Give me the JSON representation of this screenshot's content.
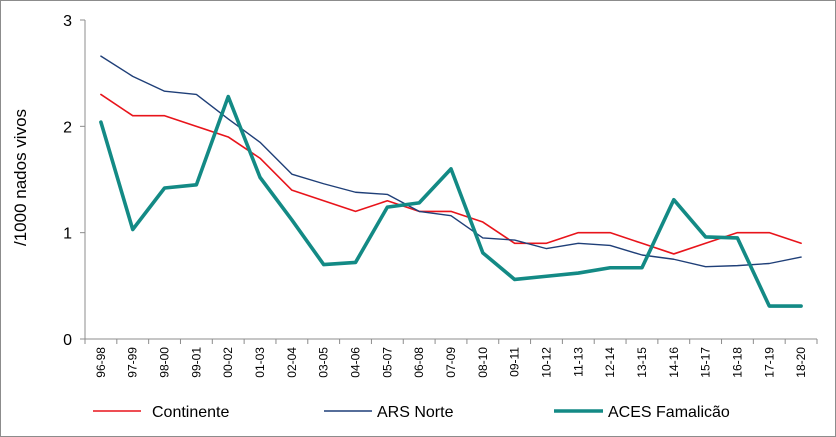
{
  "chart_data": {
    "type": "line",
    "title": "",
    "xlabel": "",
    "ylabel": "/1000 nados vivos",
    "ylim": [
      0,
      3
    ],
    "yticks": [
      "0",
      "1",
      "2",
      "3"
    ],
    "grid": false,
    "legend_placement": "bottom",
    "categories": [
      "96-98",
      "97-99",
      "98-00",
      "99-01",
      "00-02",
      "01-03",
      "02-04",
      "03-05",
      "04-06",
      "05-07",
      "06-08",
      "07-09",
      "08-10",
      "09-11",
      "10-12",
      "11-13",
      "12-14",
      "13-15",
      "14-16",
      "15-17",
      "16-18",
      "17-19",
      "18-20"
    ],
    "series": [
      {
        "name": "Continente",
        "color": "#e8141b",
        "width": 1.6,
        "values": [
          2.3,
          2.1,
          2.1,
          2.0,
          1.9,
          1.7,
          1.4,
          1.3,
          1.2,
          1.3,
          1.2,
          1.2,
          1.1,
          0.9,
          0.9,
          1.0,
          1.0,
          0.9,
          0.8,
          0.9,
          1.0,
          1.0,
          0.9
        ]
      },
      {
        "name": "ARS Norte",
        "color": "#1f3f78",
        "width": 1.4,
        "values": [
          2.66,
          2.47,
          2.33,
          2.3,
          2.07,
          1.85,
          1.55,
          1.46,
          1.38,
          1.36,
          1.2,
          1.16,
          0.95,
          0.93,
          0.85,
          0.9,
          0.88,
          0.79,
          0.75,
          0.68,
          0.69,
          0.71,
          0.77
        ]
      },
      {
        "name": "ACES Famalicão",
        "color": "#138a85",
        "width": 3.6,
        "values": [
          2.04,
          1.03,
          1.42,
          1.45,
          2.28,
          1.52,
          1.12,
          0.7,
          0.72,
          1.24,
          1.28,
          1.6,
          0.81,
          0.56,
          0.59,
          0.62,
          0.67,
          0.67,
          1.31,
          0.96,
          0.95,
          0.31,
          0.31
        ]
      }
    ]
  }
}
